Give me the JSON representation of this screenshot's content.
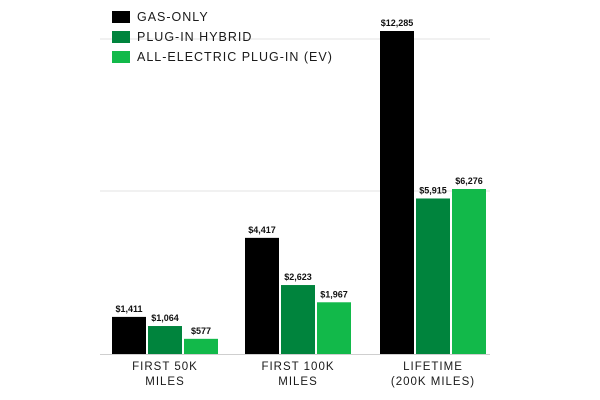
{
  "chart_data": {
    "type": "bar",
    "categories": [
      [
        "FIRST 50K",
        "MILES"
      ],
      [
        "FIRST 100K",
        "MILES"
      ],
      [
        "LIFETIME",
        "(200K MILES)"
      ]
    ],
    "series": [
      {
        "name": "GAS-ONLY",
        "color": "#000000",
        "values": [
          1411,
          4417,
          12285
        ],
        "labels": [
          "$1,411",
          "$4,417",
          "$12,285"
        ]
      },
      {
        "name": "PLUG-IN HYBRID",
        "color": "#00843d",
        "values": [
          1064,
          2623,
          5915
        ],
        "labels": [
          "$1,064",
          "$2,623",
          "$5,915"
        ]
      },
      {
        "name": "ALL-ELECTRIC PLUG-IN (EV)",
        "color": "#12b94a",
        "values": [
          577,
          1967,
          6276
        ],
        "labels": [
          "$577",
          "$1,967",
          "$6,276"
        ]
      }
    ],
    "ylim": [
      0,
      12285
    ],
    "grid": true,
    "legend": "top-left"
  }
}
